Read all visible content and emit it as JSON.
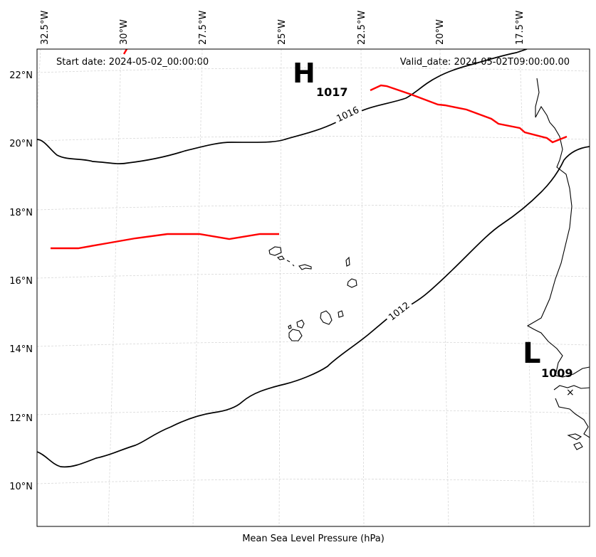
{
  "map": {
    "title": "Mean Sea Level Pressure (hPa)",
    "start_date": "Start date: 2024-05-02_00:00:00",
    "valid_date": "Valid_date: 2024-05-02T09:00:00.00",
    "lon_labels": [
      "32.5°W",
      "30°W",
      "27.5°W",
      "25°W",
      "22.5°W",
      "20°W",
      "17.5°W"
    ],
    "lat_labels": [
      "22°N",
      "20°N",
      "18°N",
      "16°N",
      "14°N",
      "12°N",
      "10°N"
    ],
    "contour_labels": [
      "1016",
      "1012"
    ],
    "pressure_centers": [
      {
        "type": "high",
        "symbol": "H",
        "value": "1017"
      },
      {
        "type": "low",
        "symbol": "L",
        "value": "1009"
      }
    ],
    "colors": {
      "isobar": "#000000",
      "track": "#ff0000",
      "grid": "#d8d8d8",
      "coast": "#000000"
    }
  }
}
